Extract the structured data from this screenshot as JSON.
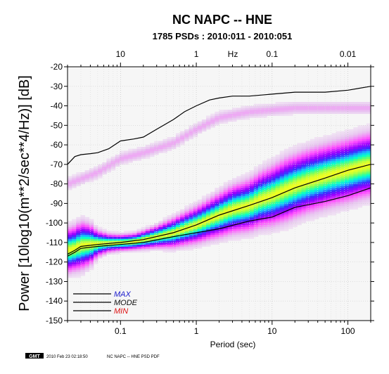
{
  "chart_data": {
    "type": "line",
    "title": "NC NAPC -- HNE",
    "subtitle": "1785 PSDs : 2010:011 - 2010:051",
    "xlabel": "Period (sec)",
    "xlabel_top": "Hz",
    "ylabel": "Power [10log10(m**2/sec**4/Hz)] [dB]",
    "x_scale": "log",
    "xlim": [
      0.02,
      200
    ],
    "ylim": [
      -150,
      -20
    ],
    "grid": true,
    "legend_position": "bottom-left",
    "x_ticks_bottom": [
      {
        "value": 0.1,
        "label": "0.1"
      },
      {
        "value": 1,
        "label": "1"
      },
      {
        "value": 10,
        "label": "10"
      },
      {
        "value": 100,
        "label": "100"
      }
    ],
    "x_ticks_top": [
      {
        "value": 0.1,
        "label": "10"
      },
      {
        "value": 1,
        "label": "1"
      },
      {
        "value": 10,
        "label": "0.1"
      },
      {
        "value": 100,
        "label": "0.01"
      }
    ],
    "y_ticks": [
      -20,
      -30,
      -40,
      -50,
      -60,
      -70,
      -80,
      -90,
      -100,
      -110,
      -120,
      -130,
      -140,
      -150
    ],
    "series": [
      {
        "name": "MAX",
        "legend_color": "#1a1acc",
        "x": [
          0.02,
          0.025,
          0.03,
          0.04,
          0.05,
          0.07,
          0.1,
          0.15,
          0.2,
          0.3,
          0.5,
          0.7,
          1,
          1.5,
          2,
          3,
          5,
          10,
          20,
          50,
          100,
          200
        ],
        "y": [
          -70,
          -66,
          -65,
          -64.5,
          -64,
          -62,
          -58,
          -57,
          -56,
          -52,
          -47,
          -43,
          -40,
          -37,
          -36,
          -35,
          -35,
          -34,
          -33,
          -33,
          -32,
          -30
        ]
      },
      {
        "name": "MODE",
        "legend_color": "#111111",
        "x": [
          0.02,
          0.025,
          0.03,
          0.05,
          0.1,
          0.2,
          0.5,
          1,
          2,
          5,
          10,
          20,
          50,
          100,
          200
        ],
        "y": [
          -116,
          -114,
          -112,
          -111,
          -110,
          -108.5,
          -105,
          -101,
          -96,
          -91,
          -87,
          -82,
          -77,
          -73,
          -70
        ]
      },
      {
        "name": "MIN",
        "legend_color": "#dd1111",
        "x": [
          0.02,
          0.025,
          0.03,
          0.05,
          0.1,
          0.2,
          0.5,
          1,
          2,
          5,
          10,
          20,
          50,
          100,
          200
        ],
        "y": [
          -117,
          -115,
          -113,
          -112,
          -111,
          -110,
          -107,
          -105,
          -103,
          -99,
          -97,
          -92,
          -89,
          -86,
          -82
        ]
      }
    ],
    "density": {
      "description_colors": [
        "#ffffff",
        "#e8c6f0",
        "#ff4cff",
        "#9c00ff",
        "#3a2cff",
        "#1eb4ff",
        "#00ffd0",
        "#6aff6a",
        "#f0ff20"
      ],
      "x": [
        0.02,
        0.025,
        0.03,
        0.04,
        0.05,
        0.07,
        0.1,
        0.15,
        0.2,
        0.3,
        0.5,
        0.7,
        1,
        1.5,
        2,
        3,
        5,
        7,
        10,
        15,
        20,
        30,
        50,
        70,
        100,
        150,
        200
      ],
      "center": [
        -114,
        -113,
        -111.5,
        -111,
        -110.5,
        -110.2,
        -110,
        -109.5,
        -108.5,
        -107,
        -105,
        -103,
        -101,
        -98,
        -96,
        -93,
        -91,
        -88,
        -86,
        -83,
        -81,
        -78.5,
        -76,
        -74.5,
        -73,
        -71,
        -70
      ],
      "spread": [
        6,
        6,
        6.5,
        5.5,
        3.5,
        2.5,
        2.2,
        2.2,
        2.5,
        3,
        4,
        4.5,
        5,
        5.5,
        6,
        6.5,
        7,
        7.5,
        8,
        8.5,
        8.5,
        8.5,
        8.5,
        8.5,
        8.5,
        8.5,
        8.5
      ]
    },
    "upper_haze": {
      "x": [
        0.02,
        0.05,
        0.1,
        0.2,
        0.5,
        1,
        2,
        5,
        10,
        20,
        50,
        100,
        200
      ],
      "y": [
        -80,
        -74,
        -67,
        -64,
        -59,
        -52,
        -46,
        -43,
        -42,
        -41,
        -41,
        -41,
        -41
      ]
    },
    "legend": [
      "MAX",
      "MODE",
      "MIN"
    ],
    "footer": {
      "badge": "GMT",
      "stamp": "2010 Feb 23 02:18:50",
      "caption": "NC NAPC -- HNE PSD PDF"
    }
  }
}
